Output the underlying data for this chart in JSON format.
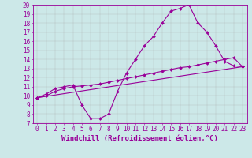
{
  "xlabel": "Windchill (Refroidissement éolien,°C)",
  "bg_color": "#cce8e8",
  "line_color": "#990099",
  "grid_color": "#aaaaaa",
  "xmin": 0,
  "xmax": 23,
  "ymin": 7,
  "ymax": 20,
  "line1_x": [
    0,
    1,
    2,
    3,
    4,
    5,
    6,
    7,
    8,
    9,
    10,
    11,
    12,
    13,
    14,
    15,
    16,
    17,
    18,
    19,
    20,
    21,
    22,
    23
  ],
  "line1_y": [
    9.8,
    10.2,
    10.8,
    11.0,
    11.2,
    9.0,
    7.5,
    7.5,
    8.0,
    10.5,
    12.5,
    14.0,
    15.5,
    16.5,
    18.0,
    19.3,
    19.6,
    20.0,
    18.0,
    17.0,
    15.5,
    13.8,
    13.3,
    13.2
  ],
  "line2_x": [
    0,
    1,
    2,
    3,
    4,
    5,
    6,
    7,
    8,
    9,
    10,
    11,
    12,
    13,
    14,
    15,
    16,
    17,
    18,
    19,
    20,
    21,
    22,
    23
  ],
  "line2_y": [
    9.8,
    10.0,
    10.5,
    10.8,
    11.0,
    11.1,
    11.2,
    11.3,
    11.5,
    11.7,
    11.9,
    12.1,
    12.3,
    12.5,
    12.7,
    12.9,
    13.1,
    13.2,
    13.4,
    13.6,
    13.8,
    14.0,
    14.2,
    13.2
  ],
  "line3_x": [
    0,
    23
  ],
  "line3_y": [
    9.8,
    13.2
  ],
  "tick_fontsize": 5.5,
  "xlabel_fontsize": 6.5,
  "marker_size": 2.0,
  "line_width": 0.8
}
